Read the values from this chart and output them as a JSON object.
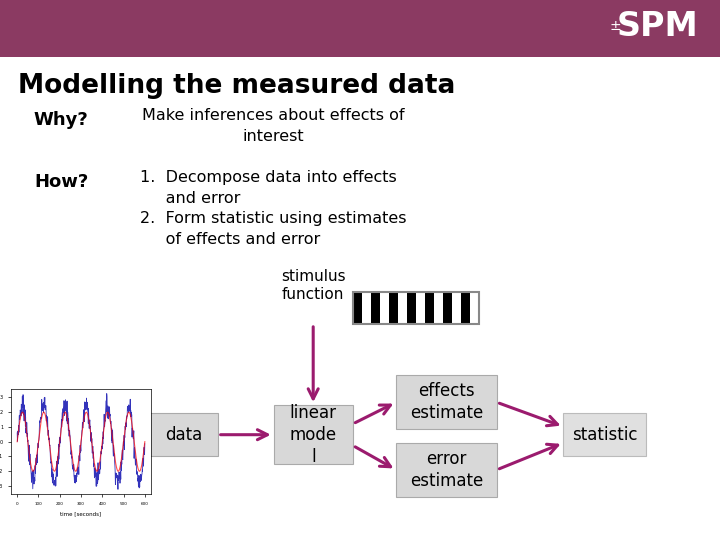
{
  "bg_color": "#ffffff",
  "header_color": "#8B3A62",
  "title": "Modelling the measured data",
  "title_color": "#000000",
  "title_fontsize": 19,
  "why_label": "Why?",
  "why_text": "Make inferences about effects of\ninterest",
  "how_label": "How?",
  "how_text_1": "1.  Decompose data into effects\n     and error",
  "how_text_2": "2.  Form statistic using estimates\n     of effects and error",
  "arrow_color": "#9B1B6E",
  "box_facecolor": "#D8D8D8",
  "box_edgecolor": "#AAAAAA",
  "stimulus_label": "stimulus\nfunction",
  "linear_model_label": "linear\nmode\nl",
  "data_label": "data",
  "effects_label": "effects\nestimate",
  "error_label": "error\nestimate",
  "statistic_label": "statistic",
  "spm_color": "#ffffff"
}
